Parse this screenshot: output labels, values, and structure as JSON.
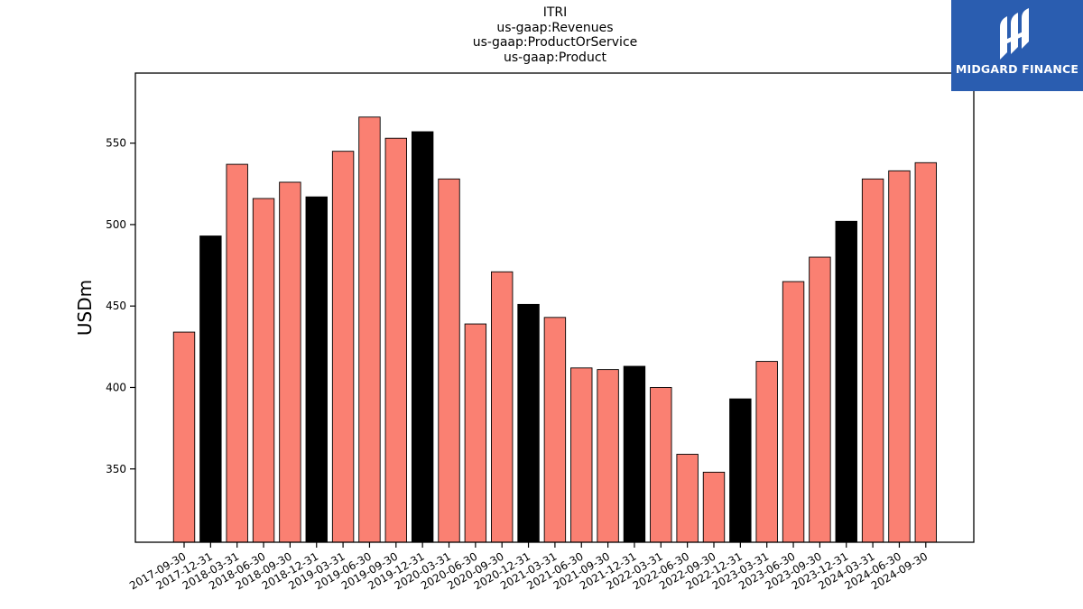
{
  "title_lines": [
    "ITRI",
    "us-gaap:Revenues",
    "us-gaap:ProductOrService",
    "us-gaap:Product"
  ],
  "logo": {
    "text": "MIDGARD FINANCE",
    "background": "#2a5db0",
    "mark": "midgard-logo-mark"
  },
  "colors": {
    "normal_bar": "#fa8072",
    "december_bar": "#000000",
    "edge": "#000000"
  },
  "chart_data": {
    "type": "bar",
    "title": "ITRI\nus-gaap:Revenues\nus-gaap:ProductOrService\nus-gaap:Product",
    "xlabel": "",
    "ylabel": "USDm",
    "ylim": [
      305,
      593
    ],
    "yticks": [
      350,
      400,
      450,
      500,
      550
    ],
    "grid": false,
    "legend": "none",
    "categories": [
      "2017-09-30",
      "2017-12-31",
      "2018-03-31",
      "2018-06-30",
      "2018-09-30",
      "2018-12-31",
      "2019-03-31",
      "2019-06-30",
      "2019-09-30",
      "2019-12-31",
      "2020-03-31",
      "2020-06-30",
      "2020-09-30",
      "2020-12-31",
      "2021-03-31",
      "2021-06-30",
      "2021-09-30",
      "2021-12-31",
      "2022-03-31",
      "2022-06-30",
      "2022-09-30",
      "2022-12-31",
      "2023-03-31",
      "2023-06-30",
      "2023-09-30",
      "2023-12-31",
      "2024-03-31",
      "2024-06-30",
      "2024-09-30"
    ],
    "values": [
      434,
      493,
      537,
      516,
      526,
      517,
      545,
      566,
      553,
      557,
      528,
      439,
      471,
      451,
      443,
      412,
      411,
      413,
      400,
      359,
      348,
      393,
      416,
      465,
      480,
      502,
      528,
      533,
      538
    ],
    "highlight": [
      "2017-12-31",
      "2018-12-31",
      "2019-12-31",
      "2020-12-31",
      "2021-12-31",
      "2022-12-31",
      "2023-12-31"
    ]
  }
}
